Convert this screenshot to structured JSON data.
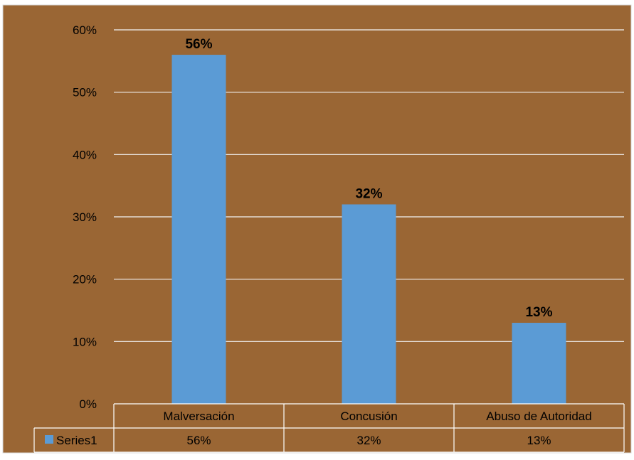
{
  "colors": {
    "background": "#9A6634",
    "bar": "#5B9BD5",
    "grid": "#F2F2F2",
    "border": "#FFFFFF",
    "text": "#000000"
  },
  "chart_data": {
    "type": "bar",
    "categories": [
      "Malversación",
      "Concusión",
      "Abuso de Autoridad"
    ],
    "series": [
      {
        "name": "Series1",
        "values": [
          0.56,
          0.32,
          0.13
        ]
      }
    ],
    "data_labels": [
      "56%",
      "32%",
      "13%"
    ],
    "ylim": [
      0,
      0.6
    ],
    "yticks": [
      0,
      0.1,
      0.2,
      0.3,
      0.4,
      0.5,
      0.6
    ],
    "ytick_labels": [
      "0%",
      "10%",
      "20%",
      "30%",
      "40%",
      "50%",
      "60%"
    ],
    "grid": true,
    "legend": "data-table",
    "data_table": {
      "header": [
        "Malversación",
        "Concusión",
        "Abuso de Autoridad"
      ],
      "rows": [
        {
          "series": "Series1",
          "values": [
            "56%",
            "32%",
            "13%"
          ]
        }
      ]
    },
    "title": "",
    "xlabel": "",
    "ylabel": ""
  }
}
